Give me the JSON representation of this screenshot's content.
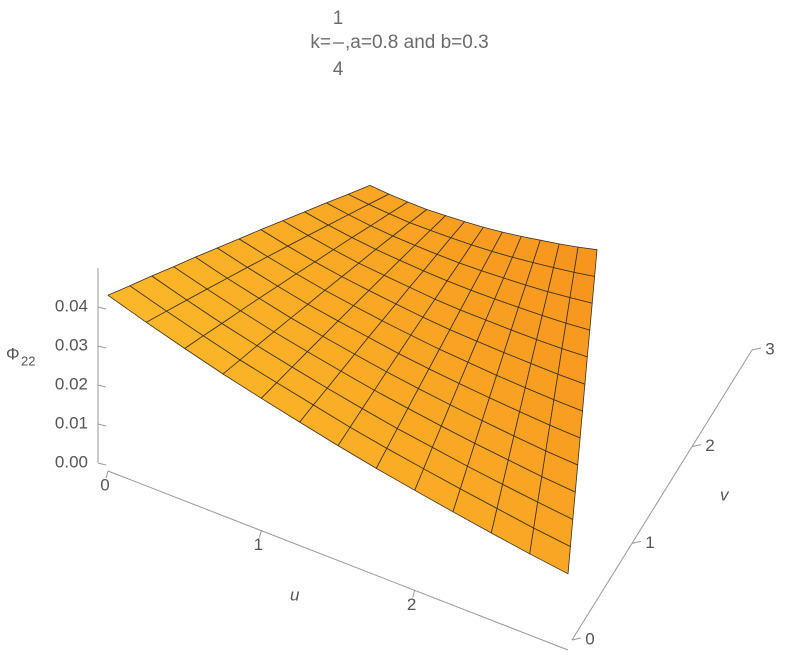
{
  "chart_data": {
    "type": "surface",
    "title": {
      "prefix": "k=",
      "numerator": "1",
      "denominator": "4",
      "suffix": ",a=0.8 and b=0.3"
    },
    "xlabel": "u",
    "ylabel": "v",
    "zlabel": {
      "symbol": "Φ",
      "subscript": "22"
    },
    "colors": [
      "#fbb829",
      "#f7931e"
    ],
    "x": [
      0,
      0.25,
      0.5,
      0.75,
      1,
      1.25,
      1.5,
      1.75,
      2,
      2.25,
      2.5,
      2.75,
      3
    ],
    "y": [
      0,
      0.25,
      0.5,
      0.75,
      1,
      1.25,
      1.5,
      1.75,
      2,
      2.25,
      2.5,
      2.75,
      3
    ],
    "z": [
      [
        0.043,
        0.0399,
        0.037,
        0.0343,
        0.0319,
        0.0296,
        0.0274,
        0.0254,
        0.0236,
        0.0219,
        0.0203,
        0.0188,
        0.0175
      ],
      [
        0.0435,
        0.0404,
        0.0375,
        0.0347,
        0.0323,
        0.03,
        0.0277,
        0.0257,
        0.0239,
        0.0222,
        0.0206,
        0.019,
        0.0177
      ],
      [
        0.0441,
        0.0409,
        0.0379,
        0.0352,
        0.0327,
        0.0303,
        0.0281,
        0.026,
        0.0242,
        0.0224,
        0.0208,
        0.0193,
        0.0179
      ],
      [
        0.0446,
        0.0414,
        0.0384,
        0.0356,
        0.0331,
        0.0307,
        0.0284,
        0.0264,
        0.0245,
        0.0227,
        0.0211,
        0.0195,
        0.0182
      ],
      [
        0.0452,
        0.0419,
        0.0389,
        0.036,
        0.0335,
        0.0311,
        0.0288,
        0.0267,
        0.0248,
        0.023,
        0.0213,
        0.0197,
        0.0184
      ],
      [
        0.0457,
        0.0424,
        0.0393,
        0.0364,
        0.0339,
        0.0315,
        0.0291,
        0.027,
        0.0251,
        0.0233,
        0.0216,
        0.02,
        0.0186
      ],
      [
        0.0462,
        0.0429,
        0.0398,
        0.0369,
        0.0343,
        0.0318,
        0.0295,
        0.0273,
        0.0254,
        0.0235,
        0.0218,
        0.0202,
        0.0188
      ],
      [
        0.0468,
        0.0434,
        0.0402,
        0.0373,
        0.0347,
        0.0322,
        0.0298,
        0.0276,
        0.0257,
        0.0238,
        0.0221,
        0.0204,
        0.019
      ],
      [
        0.0473,
        0.0439,
        0.0407,
        0.0377,
        0.0351,
        0.0326,
        0.0301,
        0.0279,
        0.026,
        0.0241,
        0.0223,
        0.0207,
        0.0193
      ],
      [
        0.0478,
        0.0444,
        0.0412,
        0.0382,
        0.0355,
        0.0329,
        0.0305,
        0.0283,
        0.0263,
        0.0244,
        0.0226,
        0.0209,
        0.0195
      ],
      [
        0.0484,
        0.0449,
        0.0416,
        0.0386,
        0.0359,
        0.0333,
        0.0308,
        0.0286,
        0.0266,
        0.0246,
        0.0228,
        0.0212,
        0.0197
      ],
      [
        0.0489,
        0.0454,
        0.0421,
        0.039,
        0.0363,
        0.0337,
        0.0312,
        0.0289,
        0.0268,
        0.0249,
        0.0231,
        0.0214,
        0.0199
      ],
      [
        0.0495,
        0.0459,
        0.0426,
        0.0394,
        0.0367,
        0.034,
        0.0315,
        0.0292,
        0.0271,
        0.0252,
        0.0233,
        0.0216,
        0.0201
      ]
    ],
    "xlim": [
      0,
      3
    ],
    "ylim": [
      0,
      3
    ],
    "zlim": [
      0,
      0.05
    ],
    "xticks": [
      0,
      1,
      2
    ],
    "yticks": [
      0,
      1,
      2,
      3
    ],
    "zticks": [
      {
        "value": 0,
        "label": "0.00"
      },
      {
        "value": 0.01,
        "label": "0.01"
      },
      {
        "value": 0.02,
        "label": "0.02"
      },
      {
        "value": 0.03,
        "label": "0.03"
      },
      {
        "value": 0.04,
        "label": "0.04"
      }
    ]
  }
}
